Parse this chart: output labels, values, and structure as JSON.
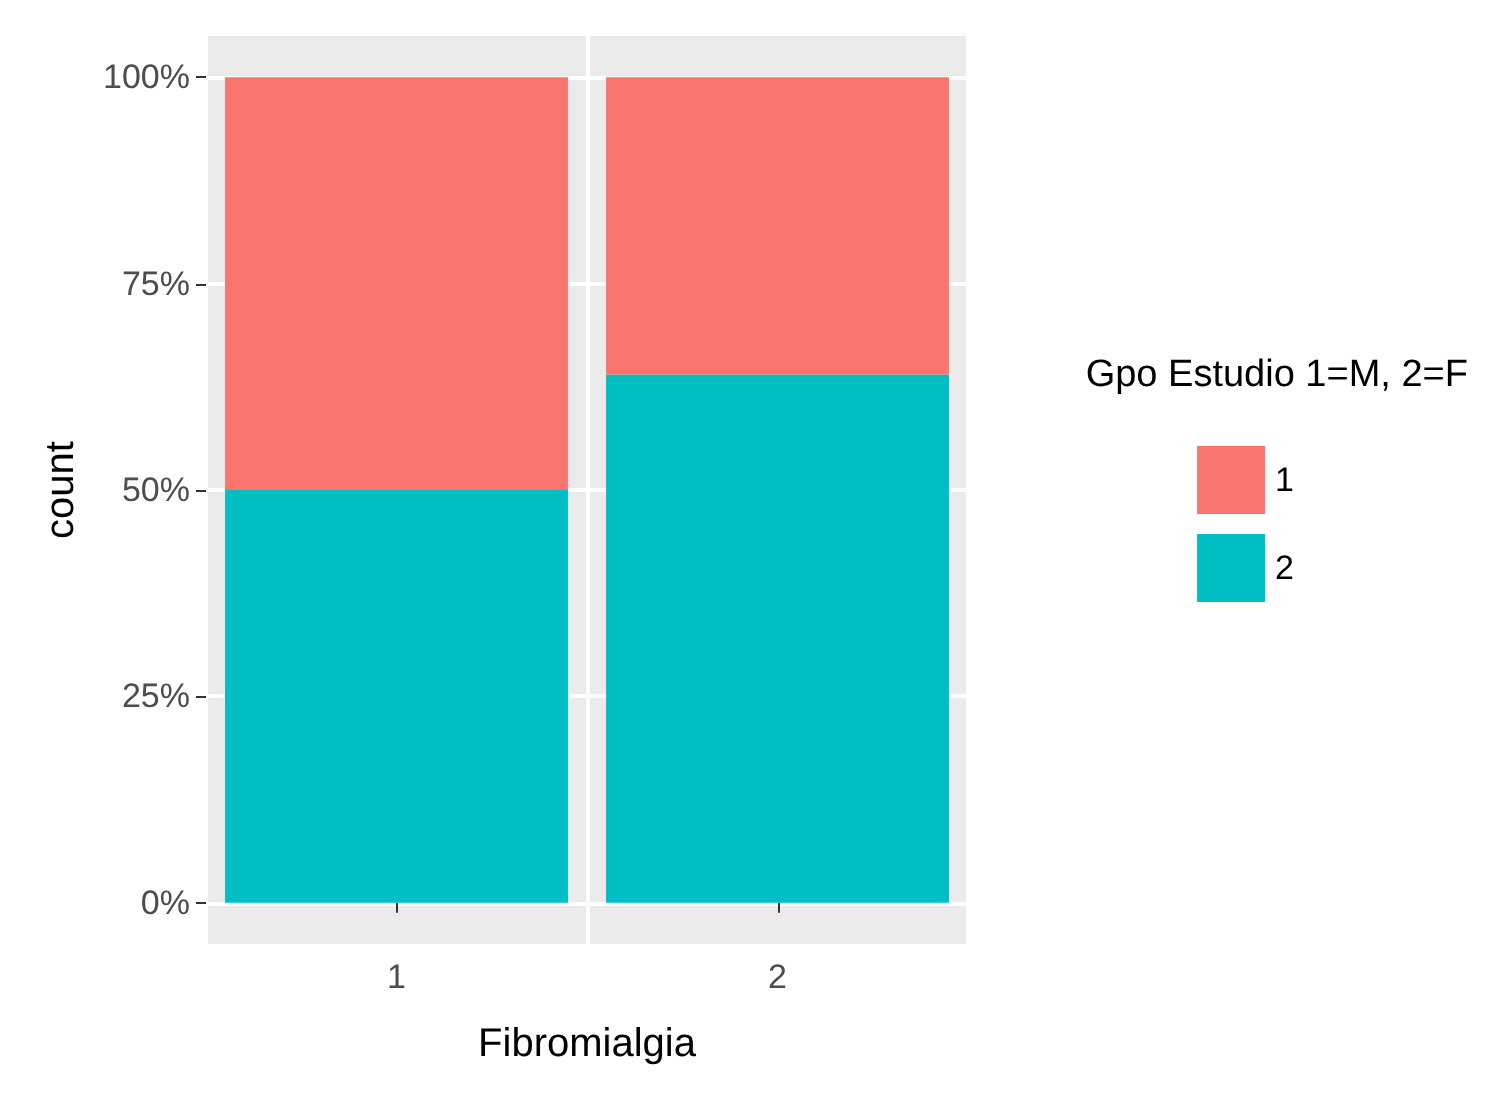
{
  "chart_data": {
    "type": "bar",
    "stacked": true,
    "xlabel": "Fibromialgia",
    "ylabel": "count",
    "legend_title": "Gpo Estudio 1=M, 2=F",
    "categories": [
      "1",
      "2"
    ],
    "series": [
      {
        "name": "2",
        "color": "#00bfc4",
        "values": [
          50,
          64
        ]
      },
      {
        "name": "1",
        "color": "#f8766d",
        "values": [
          50,
          36
        ]
      }
    ],
    "ylim": [
      -5,
      105
    ],
    "yticks": [
      {
        "value": 0,
        "label": "0%"
      },
      {
        "value": 25,
        "label": "25%"
      },
      {
        "value": 50,
        "label": "50%"
      },
      {
        "value": 75,
        "label": "75%"
      },
      {
        "value": 100,
        "label": "100%"
      }
    ],
    "grid": true,
    "legend": "right"
  }
}
